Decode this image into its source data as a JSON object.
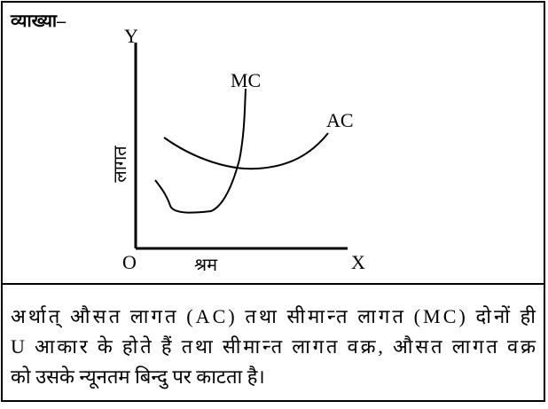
{
  "heading": "व्याख्या–",
  "diagram": {
    "y_axis_label": "Y",
    "x_axis_label": "X",
    "origin_label": "O",
    "y_title": "लागत",
    "x_title": "श्रम",
    "curves": [
      "MC",
      "AC"
    ]
  },
  "paragraph": {
    "lines": [
      "अर्थात् औसत लागत (AC) तथा सीमान्त लागत (MC) दोनों ही",
      "U आकार के होते हैं तथा सीमान्त लागत वक्र, औसत लागत वक्र",
      "को उसके न्यूनतम बिन्दु पर काटता है।"
    ]
  }
}
